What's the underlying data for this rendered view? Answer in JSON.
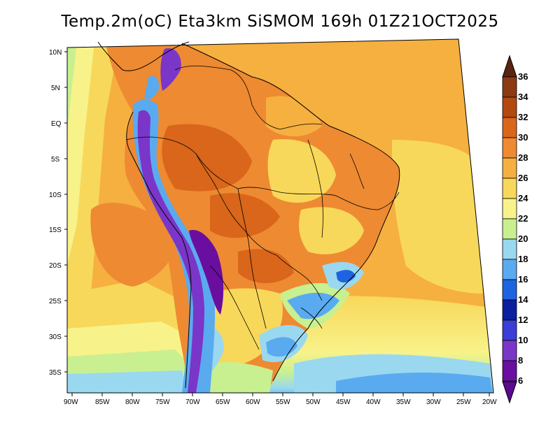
{
  "title": "Temp.2m(oC) Eta3km SiSMOM 169h 01Z21OCT2025",
  "map": {
    "variable": "2 m air temperature",
    "units": "oC",
    "region": "South America",
    "lat_labels": [
      "10N",
      "5N",
      "EQ",
      "5S",
      "10S",
      "15S",
      "20S",
      "25S",
      "30S",
      "35S"
    ],
    "lon_labels": [
      "90W",
      "85W",
      "80W",
      "75W",
      "70W",
      "65W",
      "60W",
      "55W",
      "50W",
      "45W",
      "40W",
      "35W",
      "30W",
      "25W",
      "20W"
    ]
  },
  "colorbar": {
    "labels": [
      "36",
      "34",
      "32",
      "30",
      "28",
      "26",
      "24",
      "22",
      "20",
      "18",
      "16",
      "14",
      "12",
      "10",
      "8",
      "6"
    ],
    "colors": [
      "#6e2c12",
      "#8c3a14",
      "#b24a10",
      "#d9661a",
      "#ee8a32",
      "#f5b040",
      "#f8d85a",
      "#f8f28a",
      "#c8f090",
      "#9ad8f0",
      "#5aaaf0",
      "#1e64e0",
      "#0a1ea0",
      "#3c3cd8",
      "#7a36c8",
      "#6a0ea0"
    ],
    "top_arrow_color": "#5a2410",
    "bottom_arrow_color": "#5a0a8c"
  }
}
